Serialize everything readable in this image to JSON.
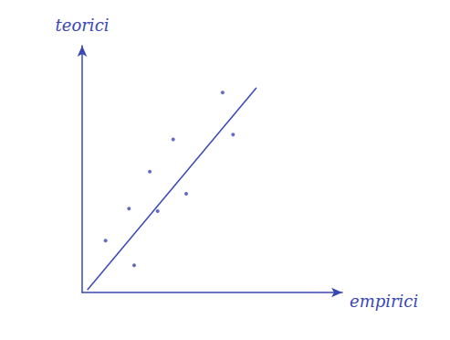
{
  "chart_data": {
    "type": "scatter",
    "x_label": "empirici",
    "y_label": "teorici",
    "color": "#3b47b4",
    "xlim": [
      0,
      10
    ],
    "ylim": [
      0,
      10
    ],
    "grid": false,
    "tick_labels": false,
    "series": [
      {
        "type": "scatter",
        "x": [
          5.4,
          5.8,
          3.5,
          2.6,
          1.8,
          2.9,
          4.0,
          0.9,
          2.0
        ],
        "values": [
          8.1,
          6.4,
          6.2,
          4.9,
          3.4,
          3.3,
          4.0,
          2.1,
          1.1
        ]
      },
      {
        "type": "line",
        "x": [
          0.2,
          6.7
        ],
        "values": [
          0.1,
          8.3
        ]
      }
    ]
  }
}
